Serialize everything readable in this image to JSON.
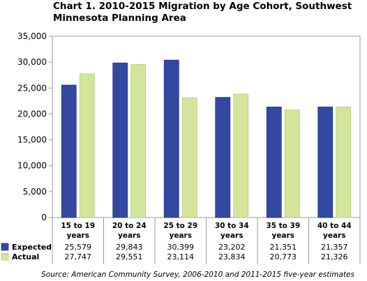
{
  "chart_data": {
    "type": "bar",
    "title_line1": "Chart 1. 2010-2015 Migration by Age Cohort, Southwest",
    "title_line2": "Minnesota Planning Area",
    "categories": [
      [
        "15 to 19",
        "years"
      ],
      [
        "20 to 24",
        "years"
      ],
      [
        "25 to 29",
        "years"
      ],
      [
        "30 to 34",
        "years"
      ],
      [
        "35 to 39",
        "years"
      ],
      [
        "40 to 44",
        "years"
      ]
    ],
    "series": [
      {
        "name": "Expected",
        "color": "#3348a1",
        "values": [
          25579,
          29843,
          30399,
          23202,
          21351,
          21357
        ],
        "labels": [
          "25,579",
          "29,843",
          "30,399",
          "23,202",
          "21,351",
          "21,357"
        ]
      },
      {
        "name": "Actual",
        "color": "#d2e59a",
        "values": [
          27747,
          29551,
          23114,
          23834,
          20773,
          21326
        ],
        "labels": [
          "27,747",
          "29,551",
          "23,114",
          "23,834",
          "20,773",
          "21,326"
        ]
      }
    ],
    "ylim": [
      0,
      35000
    ],
    "yticks": [
      "0",
      "5,000",
      "10,000",
      "15,000",
      "20,000",
      "25,000",
      "30,000",
      "35,000"
    ],
    "grid": false,
    "legend": "data-table-left",
    "source": "Source: American Community Survey, 2006-2010 and 2011-2015 five-year estimates"
  }
}
